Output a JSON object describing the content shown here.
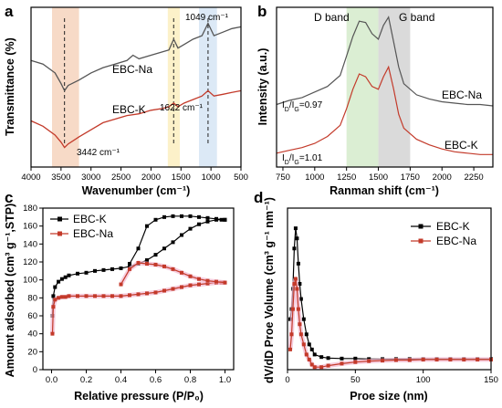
{
  "chart_data": [
    {
      "panel": "a",
      "type": "line",
      "xlabel": "Wavenumber (cm⁻¹)",
      "ylabel": "Transmittance (%)",
      "x_reversed": true,
      "xlim": [
        4000,
        500
      ],
      "xticks": [
        "4000",
        "3500",
        "3000",
        "2500",
        "2000",
        "1500",
        "1000",
        "500"
      ],
      "series": [
        {
          "name": "EBC-Na",
          "color": "#555555",
          "x": [
            4000,
            3800,
            3600,
            3500,
            3442,
            3380,
            3200,
            3000,
            2800,
            2600,
            2400,
            2300,
            2200,
            2000,
            1800,
            1700,
            1622,
            1550,
            1450,
            1300,
            1150,
            1049,
            950,
            800,
            650,
            500
          ],
          "y": [
            0.9,
            0.88,
            0.83,
            0.77,
            0.73,
            0.76,
            0.79,
            0.83,
            0.86,
            0.88,
            0.9,
            0.93,
            0.91,
            0.93,
            0.95,
            0.96,
            1.02,
            0.97,
            0.99,
            1.02,
            1.04,
            1.11,
            1.04,
            1.06,
            1.08,
            1.09
          ]
        },
        {
          "name": "EBC-K",
          "color": "#c33a2a",
          "x": [
            4000,
            3800,
            3600,
            3500,
            3442,
            3380,
            3200,
            3000,
            2800,
            2600,
            2400,
            2200,
            2000,
            1800,
            1700,
            1622,
            1550,
            1450,
            1300,
            1150,
            1049,
            950,
            800,
            650,
            500
          ],
          "y": [
            0.56,
            0.53,
            0.48,
            0.44,
            0.41,
            0.43,
            0.47,
            0.51,
            0.55,
            0.57,
            0.59,
            0.6,
            0.62,
            0.63,
            0.64,
            0.66,
            0.64,
            0.66,
            0.68,
            0.7,
            0.73,
            0.7,
            0.71,
            0.72,
            0.73
          ]
        }
      ],
      "bands": [
        {
          "from": 3650,
          "to": 3200,
          "color": "#f6d3bd"
        },
        {
          "from": 1720,
          "to": 1520,
          "color": "#fbeec0"
        },
        {
          "from": 1200,
          "to": 900,
          "color": "#d6e5f4"
        }
      ],
      "vlines": [
        3442,
        1622,
        1049
      ],
      "annotations": {
        "peak1": "3442 cm⁻¹",
        "peak2": "1622 cm⁻¹",
        "peak3": "1049 cm⁻¹",
        "label_na": "EBC-Na",
        "label_k": "EBC-K"
      }
    },
    {
      "panel": "b",
      "type": "line",
      "xlabel": "Ranman shift (cm⁻¹)",
      "ylabel": "Intensity (a.u.)",
      "xlim": [
        700,
        2400
      ],
      "xticks": [
        "750",
        "1000",
        "1250",
        "1500",
        "1750",
        "2000",
        "2250"
      ],
      "bands": [
        {
          "from": 1250,
          "to": 1500,
          "color": "#d7ecce",
          "label": "D band"
        },
        {
          "from": 1500,
          "to": 1750,
          "color": "#d6d6d6",
          "label": "G band"
        }
      ],
      "series": [
        {
          "name": "EBC-Na",
          "color": "#555555",
          "x": [
            700,
            800,
            900,
            1000,
            1100,
            1200,
            1250,
            1300,
            1350,
            1400,
            1450,
            1500,
            1540,
            1580,
            1620,
            1660,
            1700,
            1800,
            1900,
            2000,
            2100,
            2200,
            2300,
            2400
          ],
          "y": [
            0.25,
            0.28,
            0.3,
            0.34,
            0.38,
            0.46,
            0.6,
            0.74,
            0.85,
            0.84,
            0.76,
            0.72,
            0.82,
            0.88,
            0.7,
            0.52,
            0.4,
            0.32,
            0.29,
            0.27,
            0.26,
            0.25,
            0.25,
            0.24
          ]
        },
        {
          "name": "EBC-K",
          "color": "#c33a2a",
          "x": [
            700,
            800,
            900,
            1000,
            1100,
            1200,
            1250,
            1300,
            1350,
            1400,
            1450,
            1500,
            1540,
            1580,
            1620,
            1660,
            1700,
            1800,
            1900,
            2000,
            2100,
            2200,
            2300,
            2400
          ],
          "y": [
            -0.1,
            -0.08,
            -0.06,
            -0.03,
            0.02,
            0.1,
            0.22,
            0.36,
            0.47,
            0.45,
            0.38,
            0.36,
            0.45,
            0.52,
            0.36,
            0.18,
            0.08,
            0.0,
            -0.04,
            -0.07,
            -0.09,
            -0.1,
            -0.11,
            -0.11
          ]
        }
      ],
      "annotations": {
        "ratio_na": "I_D/I_G=0.97",
        "ratio_k": "I_D/I_G=1.01",
        "label_na": "EBC-Na",
        "label_k": "EBC-K"
      }
    },
    {
      "panel": "c",
      "type": "scatter",
      "xlabel": "Relative pressure (P/P₀)",
      "ylabel": "Amount adsorbed (cm³ g⁻¹,STP)",
      "xlim": [
        -0.05,
        1.05
      ],
      "ylim": [
        0,
        180
      ],
      "xticks": [
        "0.0",
        "0.2",
        "0.4",
        "0.6",
        "0.8",
        "1.0"
      ],
      "yticks": [
        "0",
        "20",
        "40",
        "60",
        "80",
        "100",
        "120",
        "140",
        "160",
        "180"
      ],
      "legend": "top-left",
      "series": [
        {
          "name": "EBC-K",
          "color": "#000000",
          "marker": "square",
          "adsorption": {
            "x": [
              0.005,
              0.01,
              0.02,
              0.04,
              0.06,
              0.08,
              0.1,
              0.15,
              0.2,
              0.25,
              0.3,
              0.35,
              0.4,
              0.45,
              0.5,
              0.55,
              0.6,
              0.65,
              0.7,
              0.75,
              0.8,
              0.85,
              0.9,
              0.95,
              0.98,
              1.0
            ],
            "y": [
              60,
              82,
              92,
              98,
              101,
              103,
              105,
              107,
              108,
              110,
              111,
              112,
              113,
              115,
              118,
              122,
              128,
              135,
              142,
              150,
              157,
              162,
              165,
              167,
              167,
              167
            ]
          },
          "desorption": {
            "x": [
              1.0,
              0.95,
              0.9,
              0.85,
              0.8,
              0.75,
              0.7,
              0.65,
              0.6,
              0.55,
              0.5,
              0.45
            ],
            "y": [
              167,
              168,
              169,
              170,
              171,
              171,
              171,
              170,
              167,
              160,
              135,
              118
            ]
          }
        },
        {
          "name": "EBC-Na",
          "color": "#c33a2a",
          "marker": "square",
          "adsorption": {
            "x": [
              0.005,
              0.01,
              0.02,
              0.04,
              0.06,
              0.08,
              0.1,
              0.15,
              0.2,
              0.25,
              0.3,
              0.35,
              0.4,
              0.45,
              0.5,
              0.55,
              0.6,
              0.65,
              0.7,
              0.75,
              0.8,
              0.85,
              0.9,
              0.95,
              0.98,
              1.0
            ],
            "y": [
              40,
              70,
              78,
              80,
              81,
              81,
              82,
              82,
              82,
              82,
              82,
              82,
              82,
              83,
              84,
              85,
              86,
              88,
              90,
              92,
              94,
              95,
              96,
              97,
              97,
              97
            ]
          },
          "desorption": {
            "x": [
              1.0,
              0.95,
              0.9,
              0.85,
              0.8,
              0.75,
              0.7,
              0.65,
              0.6,
              0.55,
              0.5,
              0.45,
              0.4
            ],
            "y": [
              97,
              98,
              99,
              101,
              104,
              108,
              112,
              115,
              117,
              118,
              119,
              112,
              95
            ]
          }
        }
      ]
    },
    {
      "panel": "d",
      "type": "line",
      "xlabel": "Proe size (nm)",
      "ylabel": "dV/dD Proe Volume (cm³ g⁻¹ nm⁻¹)",
      "xlim": [
        0,
        150
      ],
      "ylim": [
        -0.02,
        0.3
      ],
      "xticks": [
        "0",
        "50",
        "100",
        "150"
      ],
      "legend": "top-right",
      "series": [
        {
          "name": "EBC-K",
          "color": "#000000",
          "marker": "square",
          "x": [
            2,
            3,
            4,
            5,
            6,
            7,
            8,
            9,
            10,
            12,
            14,
            16,
            18,
            20,
            25,
            30,
            40,
            50,
            60,
            70,
            80,
            90,
            100,
            110,
            120,
            130,
            140,
            150
          ],
          "y": [
            0.08,
            0.1,
            0.14,
            0.22,
            0.26,
            0.24,
            0.19,
            0.15,
            0.12,
            0.08,
            0.05,
            0.03,
            0.02,
            0.01,
            0.005,
            0.003,
            0.002,
            0.002,
            0.001,
            0.001,
            0.001,
            0.001,
            0.001,
            0.001,
            0.001,
            0.001,
            0.001,
            0.001
          ]
        },
        {
          "name": "EBC-Na",
          "color": "#c33a2a",
          "marker": "square",
          "x": [
            2,
            3,
            4,
            5,
            6,
            7,
            8,
            9,
            10,
            12,
            14,
            16,
            18,
            20,
            25,
            30,
            40,
            50,
            60,
            70,
            80,
            90,
            100,
            110,
            120,
            130,
            140,
            150
          ],
          "y": [
            0.02,
            0.05,
            0.1,
            0.15,
            0.16,
            0.14,
            0.1,
            0.07,
            0.05,
            0.03,
            0.01,
            0.0,
            -0.01,
            -0.015,
            -0.015,
            -0.012,
            -0.008,
            -0.005,
            -0.003,
            -0.002,
            -0.001,
            -0.001,
            0.0,
            0.0,
            0.0,
            0.0,
            0.0,
            0.0
          ]
        }
      ]
    }
  ],
  "panels": {
    "a": "a",
    "b": "b",
    "c": "c",
    "d": "d"
  }
}
